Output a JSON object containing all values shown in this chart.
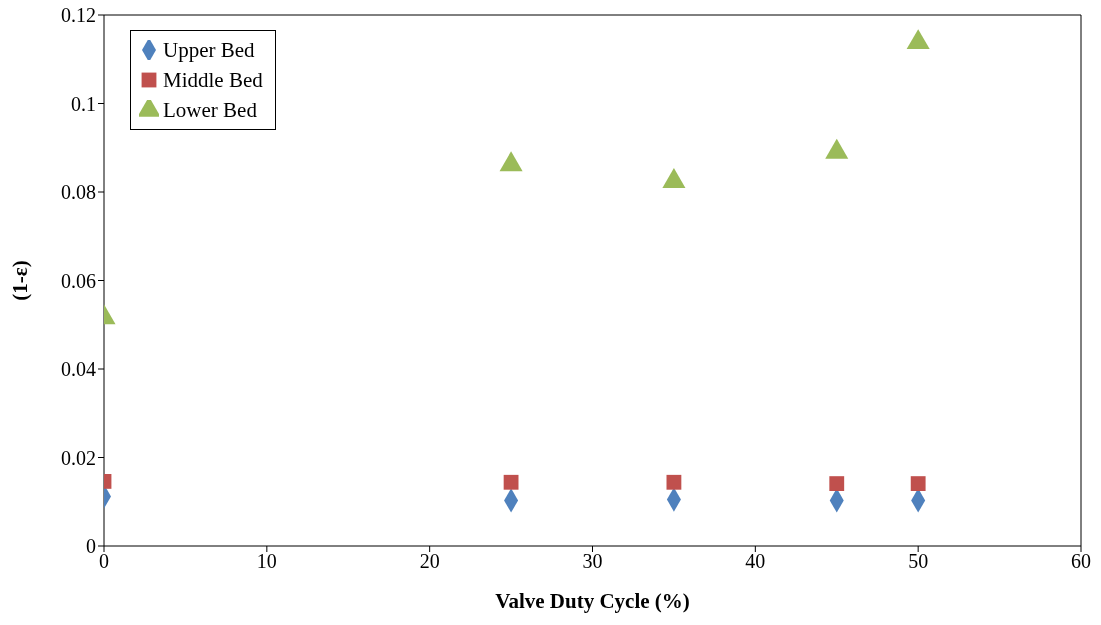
{
  "chart_data": {
    "type": "scatter",
    "xlabel": "Valve Duty Cycle (%)",
    "ylabel": "(1-ε)",
    "x": [
      0,
      25,
      35,
      45,
      50
    ],
    "series": [
      {
        "name": "Upper Bed",
        "color": "#4f81bd",
        "marker": "diamond",
        "values": [
          0.0112,
          0.0103,
          0.0105,
          0.0103,
          0.0103
        ]
      },
      {
        "name": "Middle Bed",
        "color": "#c0504d",
        "marker": "square",
        "values": [
          0.0146,
          0.0144,
          0.0144,
          0.0141,
          0.0141
        ]
      },
      {
        "name": "Lower Bed",
        "color": "#9bbb59",
        "marker": "triangle",
        "values": [
          0.0516,
          0.0862,
          0.0824,
          0.089,
          0.1138
        ]
      }
    ],
    "xlim": [
      0,
      60
    ],
    "xticks": [
      0,
      10,
      20,
      30,
      40,
      50,
      60
    ],
    "ylim": [
      0,
      0.12
    ],
    "yticks": [
      0,
      0.02,
      0.04,
      0.06,
      0.08,
      0.1,
      0.12
    ],
    "grid": false,
    "legend": "top left"
  }
}
